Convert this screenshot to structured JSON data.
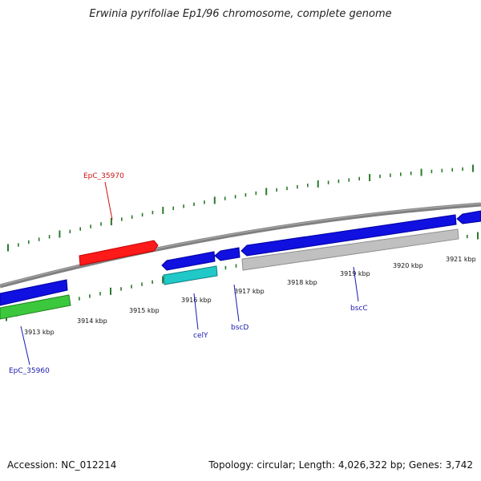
{
  "title": "Erwinia pyrifoliae Ep1/96 chromosome, complete genome",
  "footer": {
    "accession": "Accession: NC_012214",
    "topology": "Topology: circular; Length: 4,026,322 bp; Genes: 3,742"
  },
  "colors": {
    "backbone": "#808080",
    "ticks": "#2a7a2a",
    "gene_forward": "#1010e0",
    "gene_red": "#ff1a1a",
    "gene_cyan": "#20c8c8",
    "gene_green": "#3cc83c",
    "gene_gray": "#c0c0c0",
    "label_blue": "#1a1ab0",
    "label_red": "#cc1111"
  },
  "scale_labels": [
    "3913 kbp",
    "3914 kbp",
    "3915 kbp",
    "3916 kbp",
    "3917 kbp",
    "3918 kbp",
    "3919 kbp",
    "3920 kbp",
    "3921 kbp"
  ],
  "gene_labels": {
    "epc35970": "EpC_35970",
    "epc35960": "EpC_35960",
    "cely": "celY",
    "bscd": "bscD",
    "bscc": "bscC"
  }
}
